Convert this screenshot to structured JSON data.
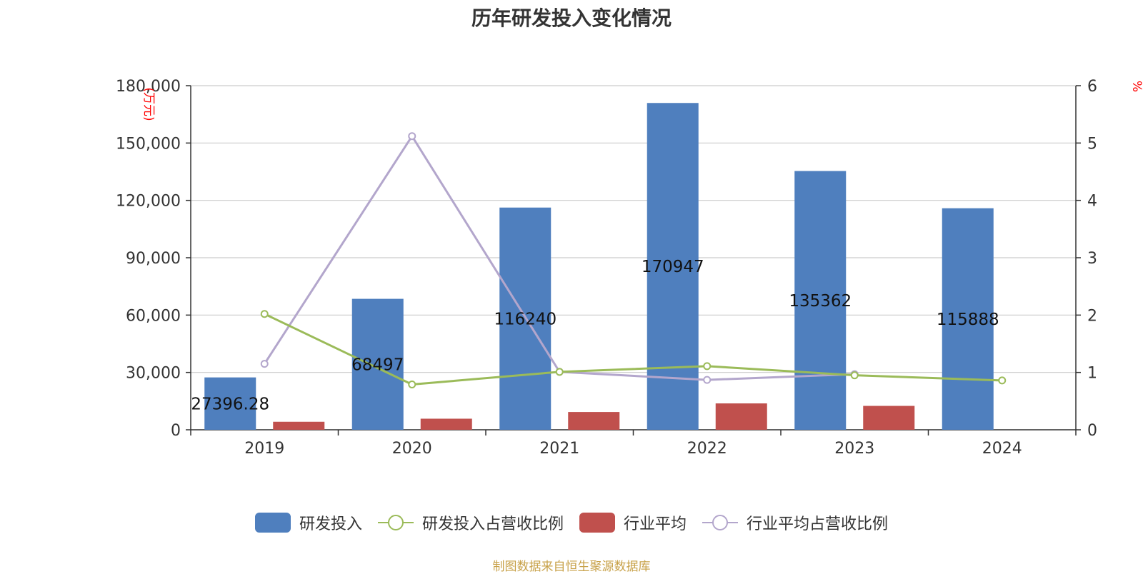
{
  "chart_data": {
    "type": "bar",
    "title": "历年研发投入变化情况",
    "categories": [
      "2019",
      "2020",
      "2021",
      "2022",
      "2023",
      "2024"
    ],
    "y_left": {
      "unit_label": "(万元)",
      "ylim": [
        0,
        180000
      ],
      "ticks": [
        "0",
        "30,000",
        "60,000",
        "90,000",
        "120,000",
        "150,000",
        "180,000"
      ]
    },
    "y_right": {
      "unit_label": "%",
      "ylim": [
        0,
        6
      ],
      "ticks": [
        "0",
        "1",
        "2",
        "3",
        "4",
        "5",
        "6"
      ]
    },
    "series": [
      {
        "name": "研发投入",
        "kind": "bar",
        "axis": "left",
        "color": "#4f7fbe",
        "values": [
          27396.28,
          68497,
          116240,
          170947,
          135362,
          115888
        ],
        "labels": [
          "27396.28",
          "68497",
          "116240",
          "170947",
          "135362",
          "115888"
        ]
      },
      {
        "name": "研发投入占营收比例",
        "kind": "line",
        "axis": "right",
        "color": "#9bbb59",
        "values": [
          2.02,
          0.79,
          1.01,
          1.11,
          0.95,
          0.86
        ]
      },
      {
        "name": "行业平均",
        "kind": "bar",
        "axis": "left",
        "color": "#c0504d",
        "values": [
          4200,
          5800,
          9300,
          13800,
          12500,
          null
        ]
      },
      {
        "name": "行业平均占营收比例",
        "kind": "line",
        "axis": "right",
        "color": "#b3a6cc",
        "values": [
          1.15,
          5.12,
          1.01,
          0.87,
          0.97,
          null
        ]
      }
    ],
    "grid": true,
    "legend_position": "bottom"
  },
  "source_note": "制图数据来自恒生聚源数据库"
}
